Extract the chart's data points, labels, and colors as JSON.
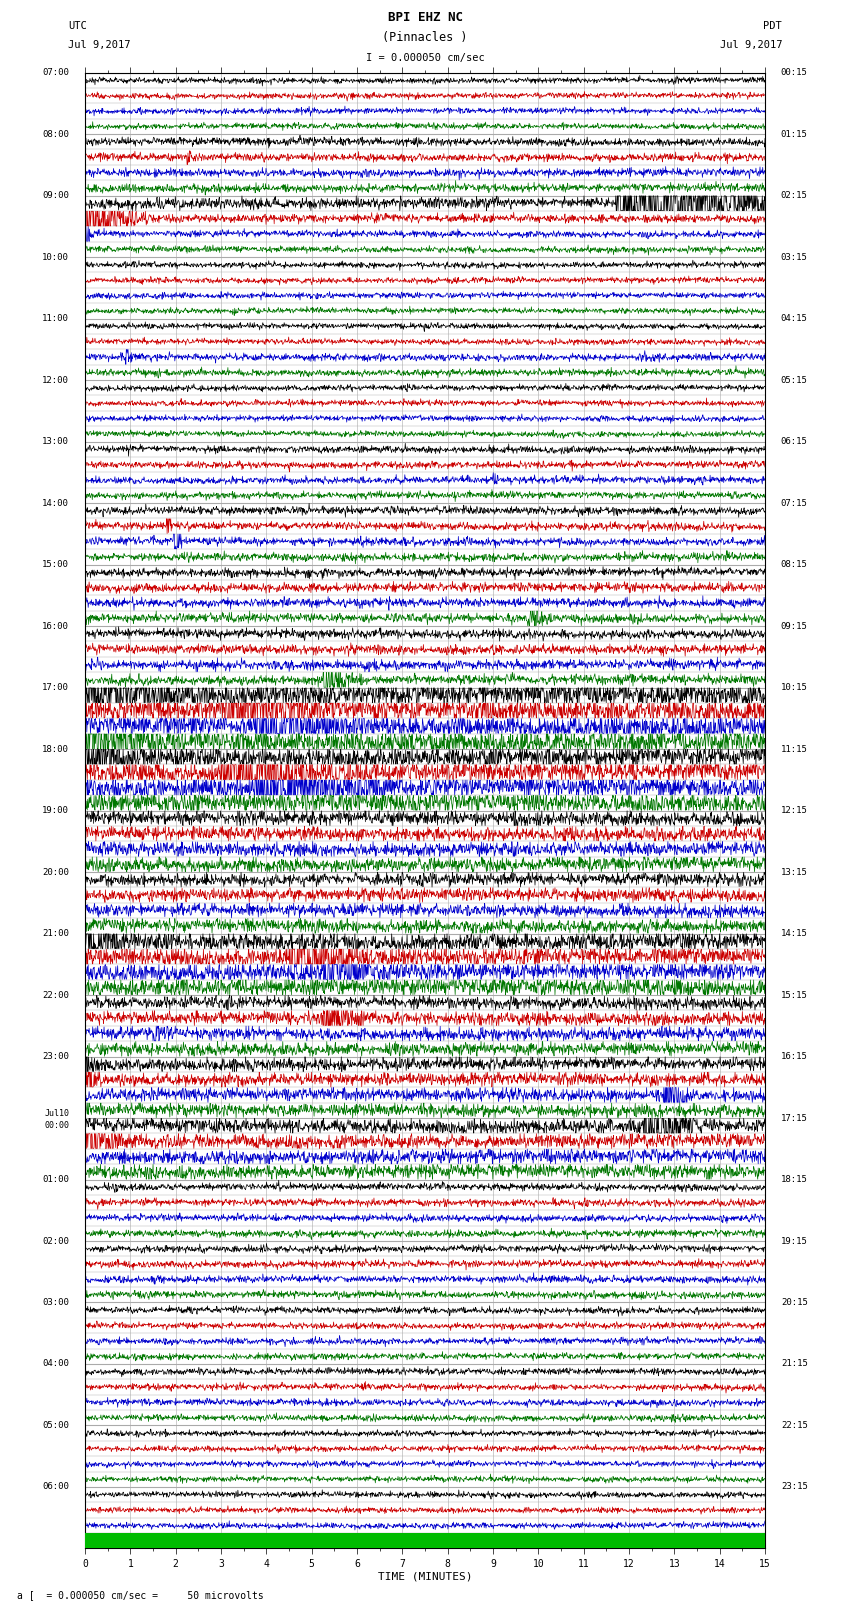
{
  "title_line1": "BPI EHZ NC",
  "title_line2": "(Pinnacles )",
  "scale_text": "I = 0.000050 cm/sec",
  "left_label_line1": "UTC",
  "left_label_line2": "Jul 9,2017",
  "right_label_line1": "PDT",
  "right_label_line2": "Jul 9,2017",
  "bottom_label": "a [  = 0.000050 cm/sec =     50 microvolts",
  "xlabel": "TIME (MINUTES)",
  "n_rows": 96,
  "fig_width": 8.5,
  "fig_height": 16.13,
  "bg_color": "#ffffff",
  "grid_color": "#aaaaaa",
  "trace_colors": [
    "#000000",
    "#cc0000",
    "#0000cc",
    "#007700"
  ],
  "noise_seed": 12345,
  "left_times_utc": [
    "07:00",
    "08:00",
    "09:00",
    "10:00",
    "11:00",
    "12:00",
    "13:00",
    "14:00",
    "15:00",
    "16:00",
    "17:00",
    "18:00",
    "19:00",
    "20:00",
    "21:00",
    "22:00",
    "23:00",
    "Jul10\n00:00",
    "01:00",
    "02:00",
    "03:00",
    "04:00",
    "05:00",
    "06:00"
  ],
  "right_times_pdt": [
    "00:15",
    "01:15",
    "02:15",
    "03:15",
    "04:15",
    "05:15",
    "06:15",
    "07:15",
    "08:15",
    "09:15",
    "10:15",
    "11:15",
    "12:15",
    "13:15",
    "14:15",
    "15:15",
    "16:15",
    "17:15",
    "18:15",
    "19:15",
    "20:15",
    "21:15",
    "22:15",
    "23:15"
  ],
  "green_bar_row": 95
}
